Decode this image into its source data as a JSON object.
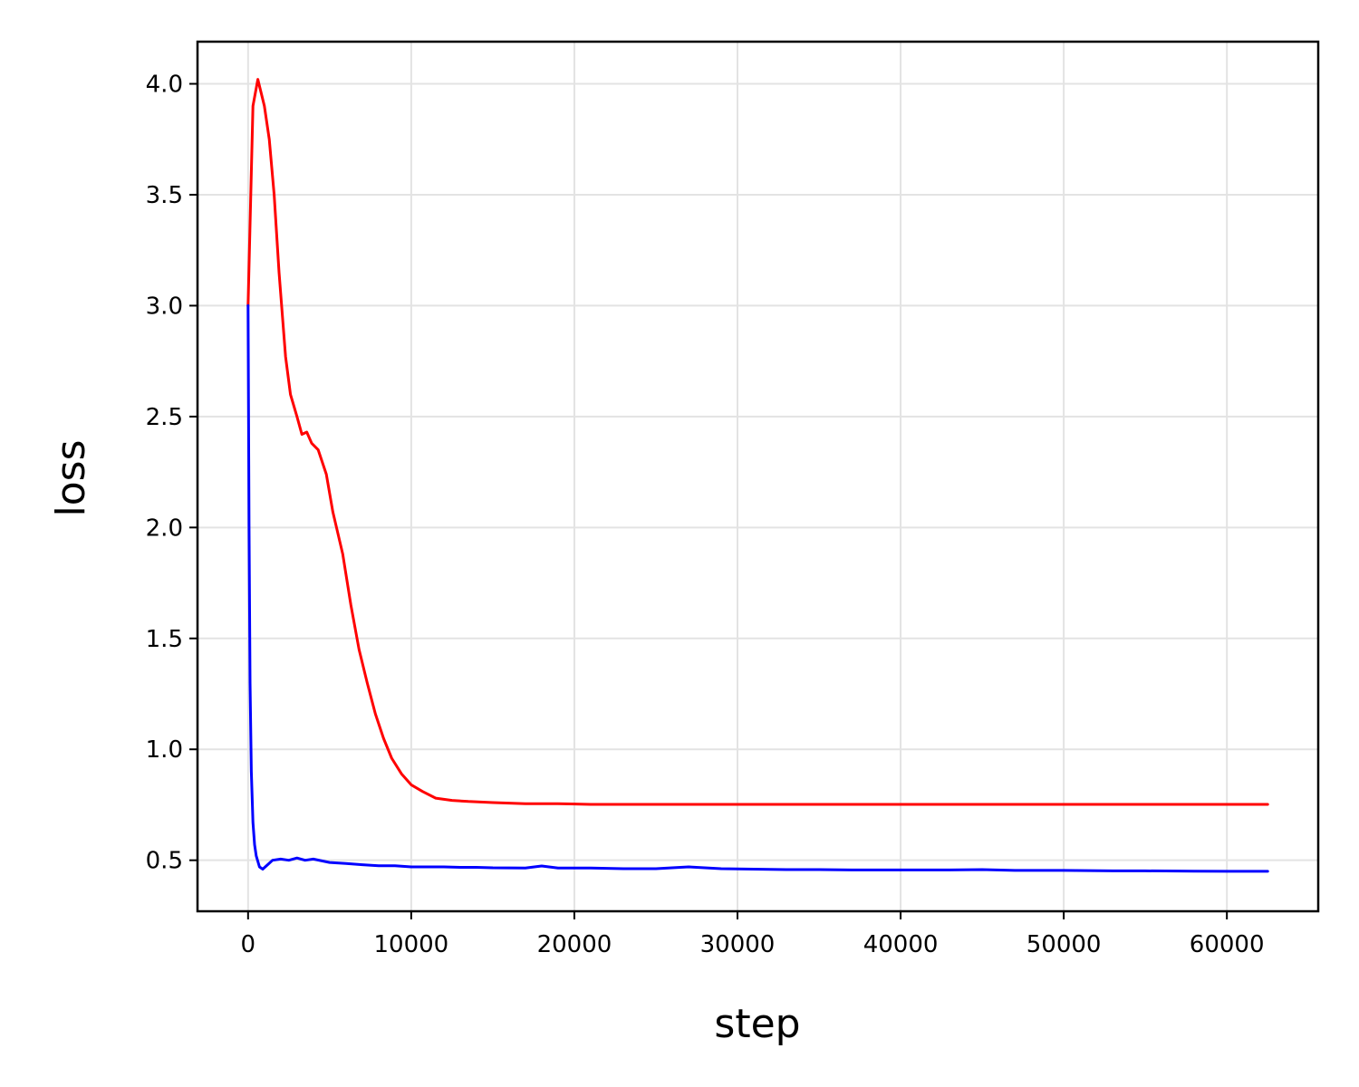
{
  "chart_data": {
    "type": "line",
    "xlabel": "step",
    "ylabel": "loss",
    "xlim": [
      -3100,
      65600
    ],
    "ylim": [
      0.27,
      4.19
    ],
    "xticks": [
      0,
      10000,
      20000,
      30000,
      40000,
      50000,
      60000
    ],
    "xtick_labels": [
      "0",
      "10000",
      "20000",
      "30000",
      "40000",
      "50000",
      "60000"
    ],
    "yticks": [
      0.5,
      1.0,
      1.5,
      2.0,
      2.5,
      3.0,
      3.5,
      4.0
    ],
    "ytick_labels": [
      "0.5",
      "1.0",
      "1.5",
      "2.0",
      "2.5",
      "3.0",
      "3.5",
      "4.0"
    ],
    "grid": true,
    "legend": "none",
    "series": [
      {
        "color": "#ff0000",
        "x": [
          0,
          300,
          600,
          1000,
          1300,
          1600,
          1900,
          2300,
          2600,
          3000,
          3300,
          3600,
          3900,
          4300,
          4800,
          5200,
          5800,
          6300,
          6800,
          7300,
          7800,
          8300,
          8800,
          9400,
          10000,
          10700,
          11500,
          12500,
          13500,
          15000,
          17000,
          19000,
          21000,
          24000,
          27000,
          30000,
          35000,
          40000,
          45000,
          50000,
          55000,
          60000,
          62500
        ],
        "y": [
          3.0,
          3.9,
          4.02,
          3.9,
          3.75,
          3.5,
          3.15,
          2.77,
          2.6,
          2.5,
          2.42,
          2.43,
          2.38,
          2.35,
          2.24,
          2.07,
          1.88,
          1.65,
          1.45,
          1.3,
          1.16,
          1.05,
          0.96,
          0.89,
          0.84,
          0.81,
          0.78,
          0.77,
          0.765,
          0.76,
          0.755,
          0.755,
          0.752,
          0.752,
          0.752,
          0.752,
          0.752,
          0.752,
          0.752,
          0.752,
          0.752,
          0.752,
          0.752
        ]
      },
      {
        "color": "#0000ff",
        "x": [
          0,
          60,
          120,
          200,
          300,
          400,
          500,
          700,
          900,
          1200,
          1500,
          2000,
          2500,
          3000,
          3500,
          4000,
          5000,
          6000,
          7000,
          8000,
          9000,
          10000,
          11000,
          12000,
          13000,
          14000,
          15000,
          17000,
          18000,
          19000,
          21000,
          23000,
          25000,
          27000,
          29000,
          31000,
          33000,
          35000,
          37000,
          40000,
          43000,
          45000,
          47000,
          50000,
          53000,
          55000,
          58000,
          60000,
          62500
        ],
        "y": [
          3.0,
          2.0,
          1.3,
          0.9,
          0.67,
          0.57,
          0.52,
          0.47,
          0.46,
          0.48,
          0.5,
          0.505,
          0.5,
          0.51,
          0.5,
          0.505,
          0.49,
          0.485,
          0.48,
          0.475,
          0.475,
          0.47,
          0.47,
          0.47,
          0.468,
          0.468,
          0.466,
          0.465,
          0.474,
          0.465,
          0.465,
          0.462,
          0.462,
          0.47,
          0.462,
          0.46,
          0.458,
          0.458,
          0.456,
          0.456,
          0.456,
          0.458,
          0.454,
          0.454,
          0.452,
          0.452,
          0.451,
          0.45,
          0.45
        ]
      }
    ]
  }
}
